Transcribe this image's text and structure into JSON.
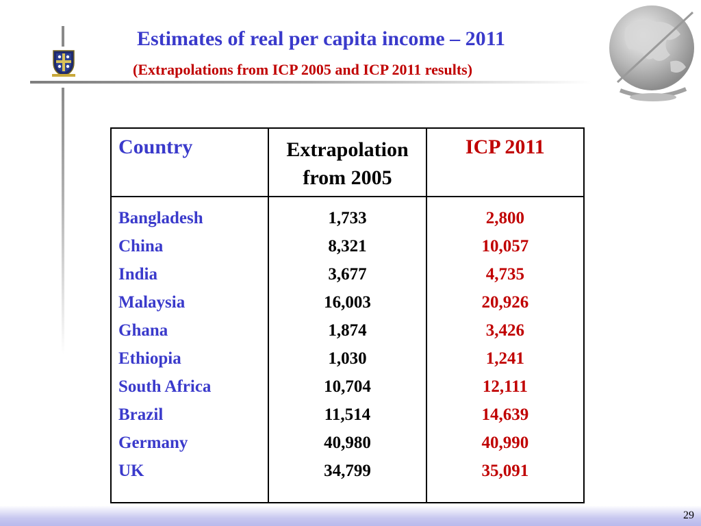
{
  "header": {
    "title": "Estimates of real  per capita income – 2011",
    "subtitle": "(Extrapolations from ICP 2005 and ICP 2011 results)"
  },
  "table": {
    "headers": {
      "country": "Country",
      "extrapolation_line1": "Extrapolation",
      "extrapolation_line2": "from 2005",
      "icp": "ICP 2011"
    },
    "rows": [
      {
        "country": "Bangladesh",
        "extrapolation": "1,733",
        "icp": "2,800"
      },
      {
        "country": "China",
        "extrapolation": "8,321",
        "icp": "10,057"
      },
      {
        "country": "India",
        "extrapolation": "3,677",
        "icp": "4,735"
      },
      {
        "country": "Malaysia",
        "extrapolation": "16,003",
        "icp": "20,926"
      },
      {
        "country": "Ghana",
        "extrapolation": "1,874",
        "icp": "3,426"
      },
      {
        "country": "Ethiopia",
        "extrapolation": "1,030",
        "icp": "1,241"
      },
      {
        "country": "South Africa",
        "extrapolation": "10,704",
        "icp": "12,111"
      },
      {
        "country": "Brazil",
        "extrapolation": "11,514",
        "icp": "14,639"
      },
      {
        "country": "Germany",
        "extrapolation": "40,980",
        "icp": "40,990"
      },
      {
        "country": "UK",
        "extrapolation": "34,799",
        "icp": "35,091"
      }
    ]
  },
  "footer": {
    "page_number": "29"
  },
  "icons": {
    "crest": "university-crest-icon",
    "globe": "globe-icon"
  },
  "colors": {
    "title_blue": "#3a3acb",
    "accent_red": "#c00000"
  }
}
